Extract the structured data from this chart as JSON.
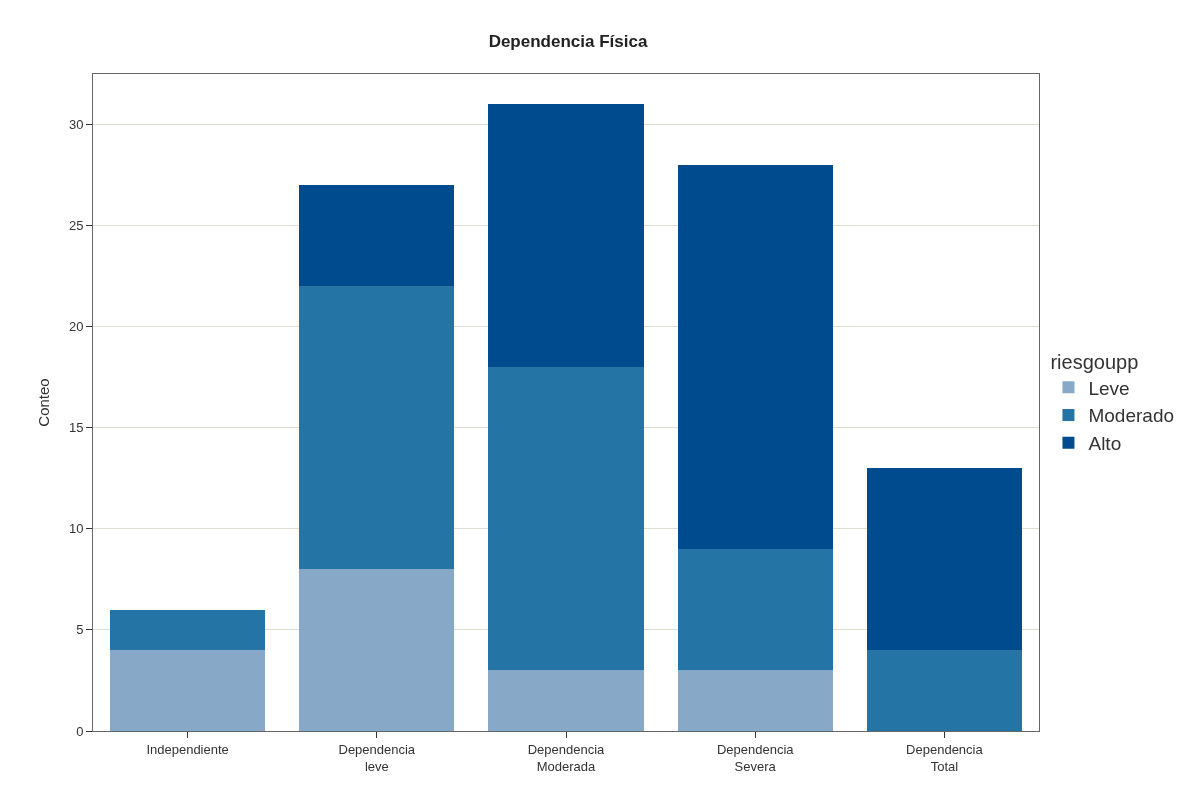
{
  "chart_data": {
    "type": "bar",
    "title": "Dependencia Física",
    "ylabel": "Conteo",
    "legend_title": "riesgoupp",
    "categories": [
      "Independiente",
      "Dependencia leve",
      "Dependencia Moderada",
      "Dependencia Severa",
      "Dependencia Total"
    ],
    "stacked": true,
    "series": [
      {
        "name": "Leve",
        "color": "#88a8c8",
        "values": [
          4,
          8,
          3,
          3,
          0
        ]
      },
      {
        "name": "Moderado",
        "color": "#2574a6",
        "values": [
          2,
          14,
          15,
          6,
          4
        ]
      },
      {
        "name": "Alto",
        "color": "#004b8d",
        "values": [
          0,
          5,
          13,
          19,
          9
        ]
      }
    ],
    "ylim": [
      0,
      32.5
    ],
    "yticks": [
      0,
      5,
      10,
      15,
      20,
      25,
      30
    ],
    "grid": "y",
    "legend": "right"
  }
}
